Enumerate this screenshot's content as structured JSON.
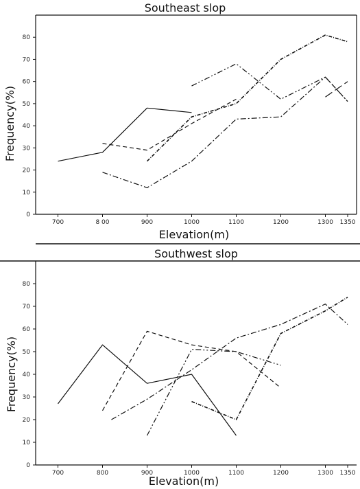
{
  "chart_data": [
    {
      "type": "line",
      "title": "Southeast slop",
      "xlabel": "Elevation(m)",
      "ylabel": "Frequency(%)",
      "x_ticks": [
        700,
        800,
        900,
        1000,
        1100,
        1200,
        1300,
        1350
      ],
      "x_tick_labels": [
        "700",
        "8 00",
        "900",
        "1000",
        "1100",
        "1200",
        "1300",
        "1350"
      ],
      "y_ticks": [
        0,
        10,
        20,
        30,
        40,
        50,
        60,
        70,
        80
      ],
      "xlim": [
        650,
        1370
      ],
      "ylim": [
        0,
        90
      ],
      "grid": false,
      "series": [
        {
          "style": "solid",
          "x": [
            700,
            800,
            900,
            1000
          ],
          "y": [
            24,
            28,
            48,
            46
          ]
        },
        {
          "style": "dashed",
          "x": [
            800,
            900,
            1000,
            1100
          ],
          "y": [
            32,
            29,
            41,
            52
          ]
        },
        {
          "style": "dashdot",
          "x": [
            800,
            900,
            1000,
            1100,
            1200,
            1300,
            1350
          ],
          "y": [
            19,
            12,
            24,
            43,
            44,
            62,
            51
          ]
        },
        {
          "style": "dashdotdot",
          "x": [
            1000,
            1100,
            1200,
            1300,
            1350
          ],
          "y": [
            58,
            68,
            52,
            62,
            51
          ]
        },
        {
          "style": "crossdash",
          "x": [
            900,
            1000,
            1100,
            1200,
            1300,
            1350
          ],
          "y": [
            24,
            44,
            50,
            70,
            81,
            78
          ]
        },
        {
          "style": "longdash",
          "x": [
            1300,
            1350
          ],
          "y": [
            53,
            60
          ]
        }
      ]
    },
    {
      "type": "line",
      "title": "Southwest slop",
      "xlabel": "Elevation(m)",
      "ylabel": "Frequency(%)",
      "x_ticks": [
        700,
        800,
        900,
        1000,
        1100,
        1200,
        1300,
        1350
      ],
      "x_tick_labels": [
        "700",
        "800",
        "900",
        "1000",
        "1100",
        "1200",
        "1300",
        "1350"
      ],
      "y_ticks": [
        0,
        10,
        20,
        30,
        40,
        50,
        60,
        70,
        80
      ],
      "xlim": [
        650,
        1370
      ],
      "ylim": [
        0,
        90
      ],
      "grid": false,
      "series": [
        {
          "style": "solid",
          "x": [
            700,
            800,
            900,
            1000,
            1100
          ],
          "y": [
            27,
            53,
            36,
            40,
            13
          ]
        },
        {
          "style": "dashed",
          "x": [
            800,
            900,
            1000,
            1100,
            1200
          ],
          "y": [
            24,
            59,
            53,
            50,
            34
          ]
        },
        {
          "style": "dashdot",
          "x": [
            820,
            900,
            1000,
            1100,
            1200,
            1300,
            1350
          ],
          "y": [
            20,
            29,
            42,
            56,
            62,
            71,
            62
          ]
        },
        {
          "style": "dashdotdot",
          "x": [
            900,
            1000,
            1100,
            1200
          ],
          "y": [
            13,
            51,
            50,
            44
          ]
        },
        {
          "style": "crossdash",
          "x": [
            1000,
            1100,
            1200,
            1300,
            1350
          ],
          "y": [
            28,
            20,
            58,
            68,
            74
          ]
        }
      ]
    }
  ]
}
